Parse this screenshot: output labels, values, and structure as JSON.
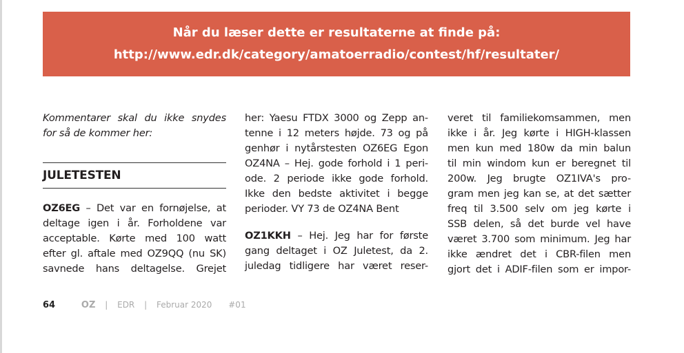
{
  "banner": {
    "line1": "Når du læser dette er resultaterne at finde på:",
    "line2": "http://www.edr.dk/category/amatoerradio/contest/hf/resultater/"
  },
  "col1": {
    "intro": [
      "Kommentarer skal du ikke snydes",
      "for så de kommer her:"
    ],
    "heading": "JULETESTEN",
    "p1_call": "OZ6EG",
    "p1_first": " – Det var en fornøjelse, at",
    "p1": [
      "deltage igen i år. Forholdene var",
      "acceptable. Kørte med 100 watt",
      "efter gl. aftale med OZ9QQ (nu SK)",
      "savnede hans deltagelse. Grejet"
    ]
  },
  "col2": {
    "p1": [
      "her: Yaesu FTDX 3000 og Zepp an-",
      "tenne i 12 meters højde. 73 og på",
      "genhør i nytårstesten OZ6EG Egon",
      "OZ4NA – Hej. gode forhold i 1 peri-",
      "ode. 2 periode ikke gode forhold.",
      "Ikke den bedste aktivitet i begge",
      "perioder. VY 73 de OZ4NA Bent"
    ],
    "p2_call": "OZ1KKH",
    "p2_first": " – Hej. Jeg har for første",
    "p2": [
      "gang deltaget i OZ Juletest, da 2.",
      "juledag tidligere har været reser-"
    ]
  },
  "col3": {
    "p1": [
      "veret til familiekomsammen, men",
      "ikke i år. Jeg kørte i HIGH-klassen",
      "men kun med 180w da min balun",
      "til min windom kun er beregnet til",
      "200w. Jeg brugte OZ1IVA's pro-",
      "gram men jeg kan se, at det sætter",
      "freq til 3.500 selv om jeg kørte i",
      "SSB delen, så det burde vel have",
      "været 3.700 som minimum. Jeg har",
      "ikke ændret det i CBR-filen men",
      "gjort det i ADIF-filen som er impor-"
    ]
  },
  "footer": {
    "page": "64",
    "mag": "OZ",
    "sep": "|",
    "org": "EDR",
    "date": "Februar 2020",
    "issue": "#01"
  },
  "colors": {
    "banner": "#d9604a"
  }
}
